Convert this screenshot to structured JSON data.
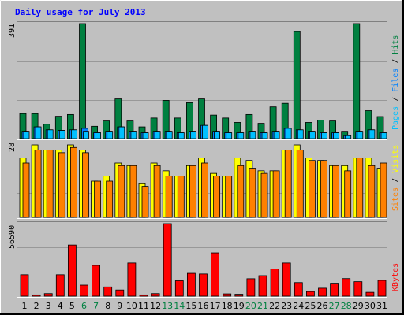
{
  "title": "Daily usage for July 2013",
  "colors": {
    "background": "#c0c0c0",
    "title": "#0000ff",
    "hits": "#008040",
    "files": "#0080ff",
    "pages": "#00c0ff",
    "visits": "#ffff00",
    "sites": "#ff8000",
    "kbytes": "#ff0000",
    "weekday_label": "#000000",
    "weekend_label": "#008040"
  },
  "chart_data": [
    {
      "type": "bar",
      "name": "hits-files-pages",
      "ymax_label": "391",
      "ymax": 391,
      "legend": [
        "Pages",
        "Files",
        "Hits"
      ],
      "x": [
        "1",
        "2",
        "3",
        "4",
        "5",
        "6",
        "7",
        "8",
        "9",
        "10",
        "11",
        "12",
        "13",
        "14",
        "15",
        "16",
        "17",
        "18",
        "19",
        "20",
        "21",
        "22",
        "23",
        "24",
        "25",
        "26",
        "27",
        "28",
        "29",
        "30",
        "31"
      ],
      "series": [
        {
          "name": "Hits",
          "color": "#008040",
          "values": [
            85,
            85,
            49,
            76,
            82,
            391,
            42,
            60,
            135,
            60,
            40,
            70,
            130,
            70,
            122,
            135,
            80,
            70,
            55,
            82,
            52,
            108,
            120,
            364,
            55,
            63,
            60,
            25,
            391,
            95,
            75
          ]
        },
        {
          "name": "Files",
          "color": "#0080ff",
          "values": [
            25,
            40,
            30,
            28,
            30,
            35,
            20,
            25,
            40,
            25,
            20,
            25,
            25,
            20,
            25,
            45,
            25,
            20,
            20,
            25,
            20,
            25,
            35,
            30,
            25,
            20,
            20,
            10,
            25,
            30,
            20
          ]
        },
        {
          "name": "Pages",
          "color": "#00c0ff",
          "values": [
            25,
            40,
            30,
            28,
            30,
            25,
            20,
            25,
            40,
            25,
            20,
            25,
            25,
            20,
            25,
            45,
            25,
            20,
            20,
            25,
            20,
            25,
            35,
            30,
            25,
            20,
            20,
            10,
            25,
            30,
            20
          ]
        }
      ]
    },
    {
      "type": "bar",
      "name": "visits-sites",
      "ymax_label": "28",
      "ymax": 28,
      "legend": [
        "Sites",
        "Visits"
      ],
      "x": [
        "1",
        "2",
        "3",
        "4",
        "5",
        "6",
        "7",
        "8",
        "9",
        "10",
        "11",
        "12",
        "13",
        "14",
        "15",
        "16",
        "17",
        "18",
        "19",
        "20",
        "21",
        "22",
        "23",
        "24",
        "25",
        "26",
        "27",
        "28",
        "29",
        "30",
        "31"
      ],
      "series": [
        {
          "name": "Visits",
          "color": "#ffff00",
          "values": [
            23,
            28,
            26,
            26,
            28,
            26,
            14,
            16,
            21,
            20,
            13,
            21,
            18,
            16,
            20,
            23,
            17,
            16,
            23,
            22,
            18,
            18,
            26,
            28,
            23,
            22,
            20,
            20,
            23,
            23,
            19
          ]
        },
        {
          "name": "Sites",
          "color": "#ff8000",
          "values": [
            21,
            26,
            26,
            25,
            27,
            25,
            14,
            14,
            20,
            20,
            12,
            20,
            16,
            16,
            20,
            21,
            16,
            16,
            20,
            19,
            17,
            18,
            26,
            26,
            22,
            22,
            20,
            18,
            23,
            20,
            21
          ]
        }
      ]
    },
    {
      "type": "bar",
      "name": "kbytes",
      "ymax_label": "56590",
      "ymax": 56590,
      "legend": [
        "KBytes"
      ],
      "x": [
        "1",
        "2",
        "3",
        "4",
        "5",
        "6",
        "7",
        "8",
        "9",
        "10",
        "11",
        "12",
        "13",
        "14",
        "15",
        "16",
        "17",
        "18",
        "19",
        "20",
        "21",
        "22",
        "23",
        "24",
        "25",
        "26",
        "27",
        "28",
        "29",
        "30",
        "31"
      ],
      "series": [
        {
          "name": "KBytes",
          "color": "#ff0000",
          "values": [
            16700,
            1000,
            2000,
            16700,
            39900,
            8600,
            24000,
            7200,
            4800,
            25900,
            1000,
            2000,
            56590,
            12000,
            17800,
            17300,
            33800,
            1800,
            1500,
            13600,
            16000,
            21200,
            25900,
            10600,
            3600,
            6200,
            10100,
            13700,
            11300,
            3000,
            12300
          ]
        }
      ]
    }
  ],
  "day_labels": [
    {
      "label": "1",
      "weekend": false
    },
    {
      "label": "2",
      "weekend": false
    },
    {
      "label": "3",
      "weekend": false
    },
    {
      "label": "4",
      "weekend": false
    },
    {
      "label": "5",
      "weekend": false
    },
    {
      "label": "6",
      "weekend": true
    },
    {
      "label": "7",
      "weekend": true
    },
    {
      "label": "8",
      "weekend": false
    },
    {
      "label": "9",
      "weekend": false
    },
    {
      "label": "10",
      "weekend": false
    },
    {
      "label": "11",
      "weekend": false
    },
    {
      "label": "12",
      "weekend": false
    },
    {
      "label": "13",
      "weekend": true
    },
    {
      "label": "14",
      "weekend": true
    },
    {
      "label": "15",
      "weekend": false
    },
    {
      "label": "16",
      "weekend": false
    },
    {
      "label": "17",
      "weekend": false
    },
    {
      "label": "18",
      "weekend": false
    },
    {
      "label": "19",
      "weekend": false
    },
    {
      "label": "20",
      "weekend": true
    },
    {
      "label": "21",
      "weekend": true
    },
    {
      "label": "22",
      "weekend": false
    },
    {
      "label": "23",
      "weekend": false
    },
    {
      "label": "24",
      "weekend": false
    },
    {
      "label": "25",
      "weekend": false
    },
    {
      "label": "26",
      "weekend": false
    },
    {
      "label": "27",
      "weekend": true
    },
    {
      "label": "28",
      "weekend": true
    },
    {
      "label": "29",
      "weekend": false
    },
    {
      "label": "30",
      "weekend": false
    },
    {
      "label": "31",
      "weekend": false
    }
  ]
}
